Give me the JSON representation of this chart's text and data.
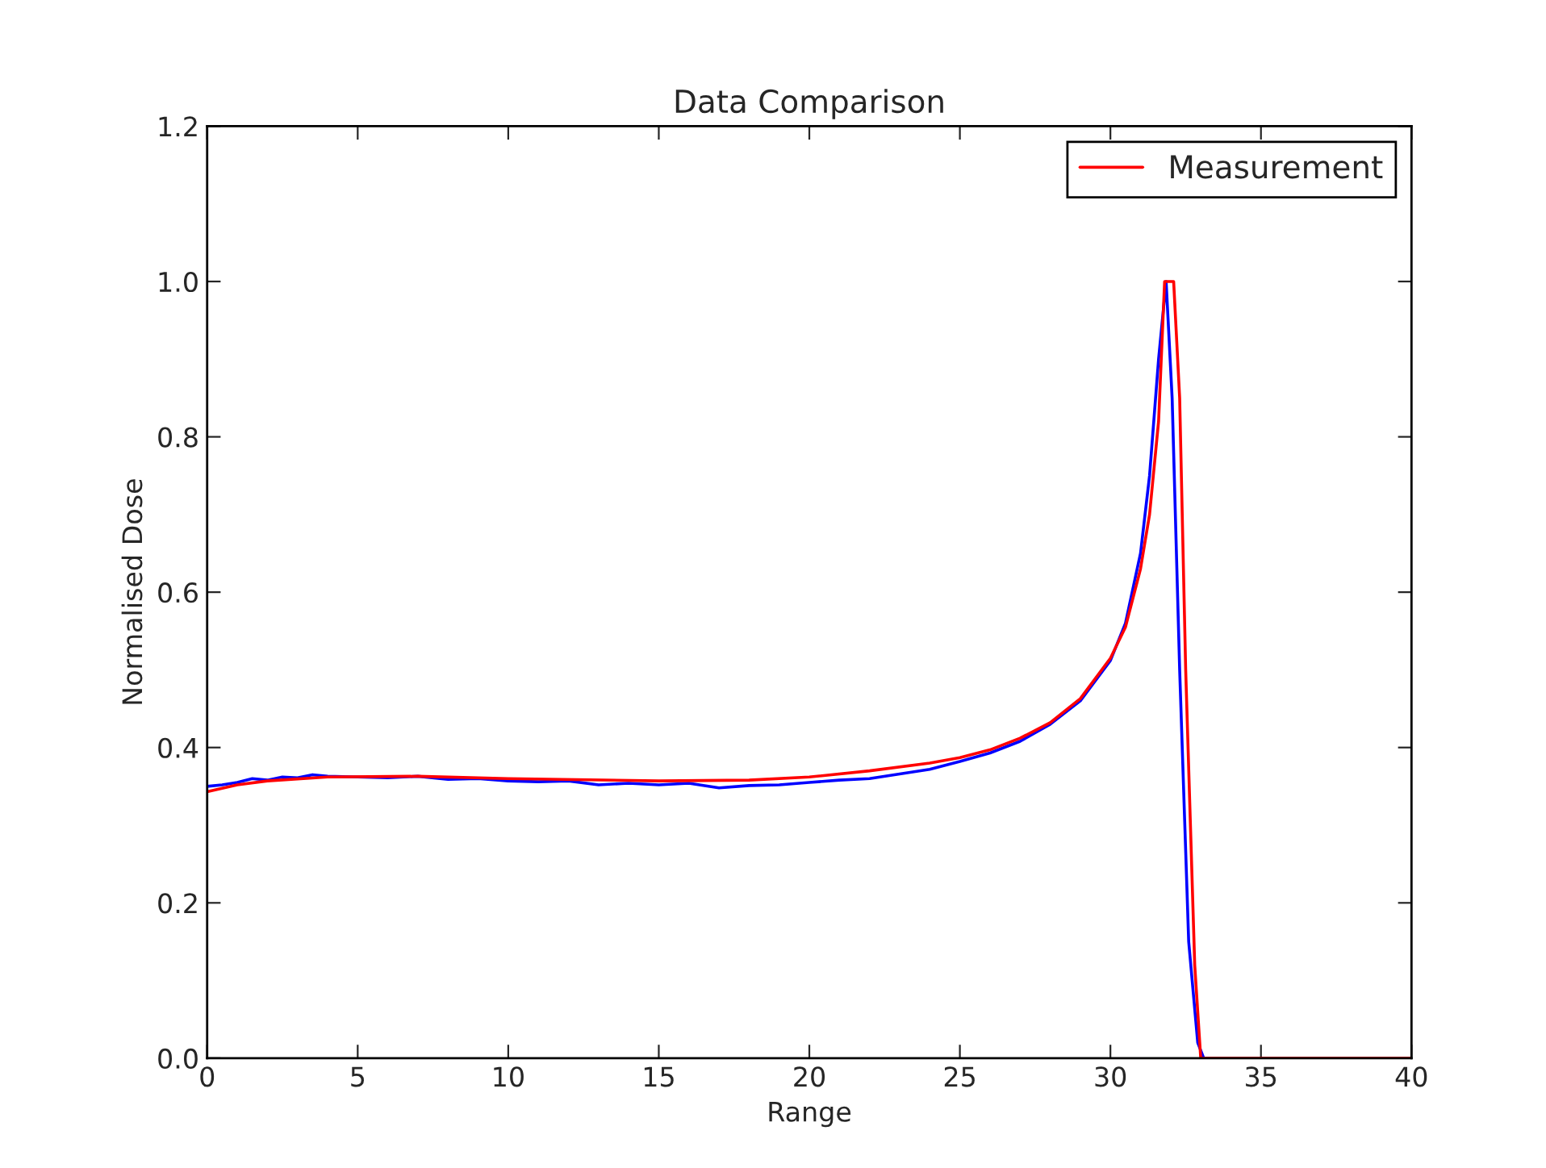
{
  "chart_data": {
    "type": "line",
    "title": "Data Comparison",
    "xlabel": "Range",
    "ylabel": "Normalised Dose",
    "xlim": [
      0,
      40
    ],
    "xticks": [
      0,
      5,
      10,
      15,
      20,
      25,
      30,
      35,
      40
    ],
    "ylim": [
      0,
      1.2
    ],
    "yticks": [
      {
        "value": 0,
        "label": "0.0"
      },
      {
        "value": 0.2,
        "label": "0.2"
      },
      {
        "value": 0.4,
        "label": "0.4"
      },
      {
        "value": 0.6,
        "label": "0.6"
      },
      {
        "value": 0.8,
        "label": "0.8"
      },
      {
        "value": 1.0,
        "label": "1.0"
      },
      {
        "value": 1.2,
        "label": "1.2"
      }
    ],
    "grid": false,
    "legend": "top right",
    "marker": "none",
    "line_style": "solid",
    "series": [
      {
        "color": "#0000ff",
        "x": [
          0,
          0.5,
          1,
          1.5,
          2,
          2.5,
          3,
          3.5,
          4,
          5,
          6,
          7,
          8,
          9,
          10,
          11,
          12,
          13,
          14,
          15,
          16,
          17,
          18,
          19,
          20,
          21,
          22,
          23,
          24,
          25,
          26,
          27,
          28,
          29,
          30,
          30.5,
          31,
          31.3,
          31.6,
          31.85,
          32.05,
          32.3,
          32.6,
          32.9,
          33.1,
          40
        ],
        "values": [
          0.35,
          0.352,
          0.355,
          0.36,
          0.358,
          0.362,
          0.361,
          0.365,
          0.363,
          0.362,
          0.361,
          0.363,
          0.359,
          0.36,
          0.357,
          0.356,
          0.357,
          0.352,
          0.354,
          0.352,
          0.354,
          0.348,
          0.351,
          0.352,
          0.355,
          0.358,
          0.36,
          0.366,
          0.372,
          0.382,
          0.393,
          0.408,
          0.43,
          0.46,
          0.512,
          0.56,
          0.65,
          0.75,
          0.9,
          1.0,
          0.85,
          0.5,
          0.15,
          0.02,
          0.0,
          0.0
        ]
      },
      {
        "name": "Measurement",
        "color": "#ff0000",
        "x": [
          0,
          1,
          2,
          4,
          7,
          10,
          15,
          18,
          20,
          22,
          24,
          25,
          26,
          27,
          28,
          29,
          30,
          30.5,
          31,
          31.3,
          31.6,
          31.8,
          32.1,
          32.3,
          32.5,
          32.8,
          33.0,
          40
        ],
        "values": [
          0.343,
          0.352,
          0.357,
          0.362,
          0.363,
          0.36,
          0.357,
          0.358,
          0.362,
          0.37,
          0.38,
          0.387,
          0.397,
          0.412,
          0.432,
          0.463,
          0.515,
          0.555,
          0.63,
          0.7,
          0.82,
          1.0,
          1.0,
          0.85,
          0.5,
          0.12,
          0.0,
          0.0
        ]
      }
    ]
  }
}
